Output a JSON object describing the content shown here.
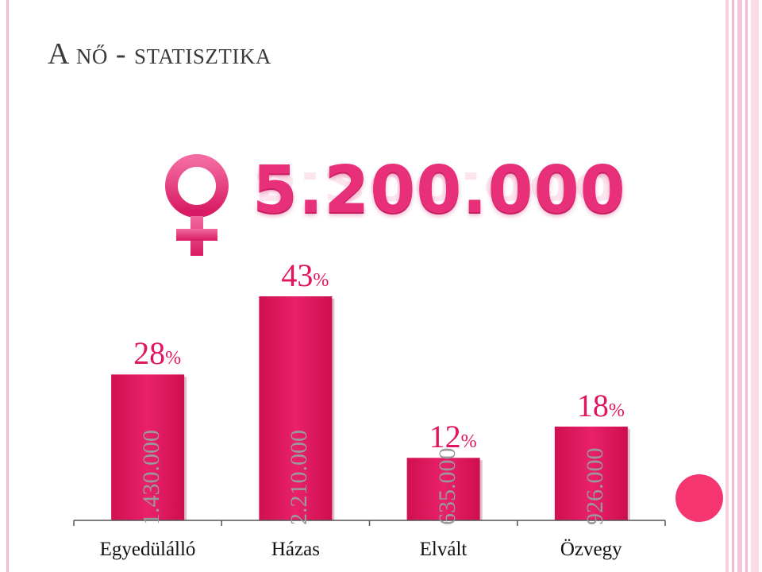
{
  "title": "A nő - statisztika",
  "total": "5.200.000",
  "colors": {
    "bar": "#e2145f",
    "accent": "#e8307a",
    "circle": "#f4356f"
  },
  "chart_data": {
    "type": "bar",
    "categories": [
      "Egyedülálló",
      "Házas",
      "Elvált",
      "Özvegy"
    ],
    "values": [
      28,
      43,
      12,
      18
    ],
    "percent_labels": [
      "28",
      "43",
      "12",
      "18"
    ],
    "unit": "%",
    "counts": [
      "1.430.000",
      "2.210.000",
      "635.000",
      "926.000"
    ],
    "ylim": [
      0,
      43
    ]
  }
}
